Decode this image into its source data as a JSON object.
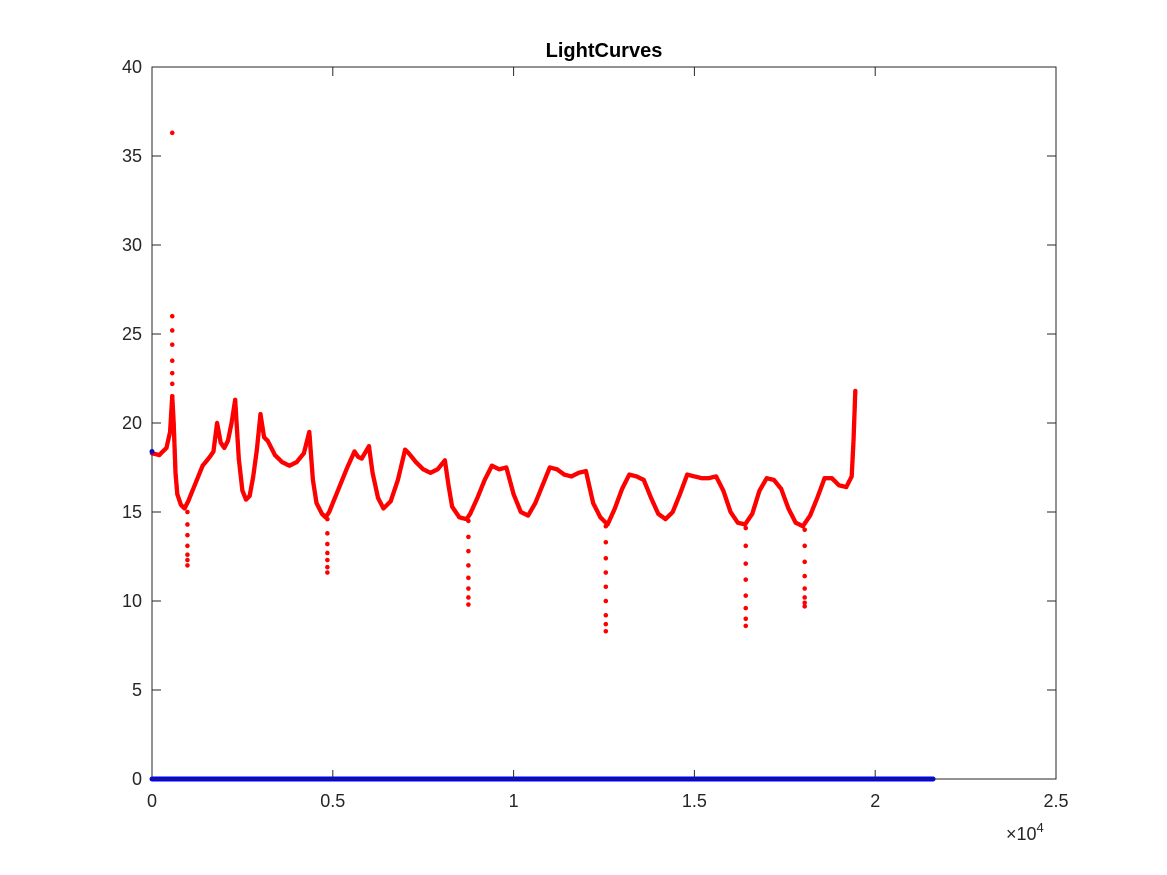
{
  "chart_data": {
    "type": "scatter",
    "title": "LightCurves",
    "xlabel": "",
    "ylabel": "",
    "xlim": [
      0,
      25000
    ],
    "ylim": [
      0,
      40
    ],
    "x_exponent_label": "×10",
    "x_exponent_power": "4",
    "x_ticks": [
      0,
      5000,
      10000,
      15000,
      20000,
      25000
    ],
    "x_tick_labels": [
      "0",
      "0.5",
      "1",
      "1.5",
      "2",
      "2.5"
    ],
    "y_ticks": [
      0,
      5,
      10,
      15,
      20,
      25,
      30,
      35,
      40
    ],
    "y_tick_labels": [
      "0",
      "5",
      "10",
      "15",
      "20",
      "25",
      "30",
      "35",
      "40"
    ],
    "grid": false,
    "colors": {
      "series_red": "#ff0000",
      "series_blue": "#0000ff",
      "axes": "#262626"
    },
    "series": [
      {
        "color": "#ff0000",
        "x": [
          0,
          200,
          400,
          500,
          560,
          600,
          650,
          700,
          800,
          900,
          1000,
          1200,
          1400,
          1600,
          1700,
          1800,
          1900,
          2000,
          2100,
          2200,
          2300,
          2400,
          2500,
          2600,
          2700,
          2800,
          2900,
          3000,
          3100,
          3200,
          3400,
          3600,
          3800,
          4000,
          4200,
          4350,
          4450,
          4550,
          4700,
          4800,
          4900,
          5000,
          5200,
          5400,
          5600,
          5700,
          5800,
          6000,
          6100,
          6250,
          6400,
          6600,
          6800,
          7000,
          7100,
          7300,
          7500,
          7700,
          7900,
          8100,
          8200,
          8300,
          8500,
          8700,
          8800,
          9000,
          9200,
          9400,
          9600,
          9800,
          10000,
          10200,
          10400,
          10600,
          10800,
          11000,
          11200,
          11400,
          11600,
          11800,
          12000,
          12200,
          12400,
          12600,
          12800,
          13000,
          13200,
          13400,
          13600,
          13800,
          14000,
          14200,
          14400,
          14600,
          14800,
          15000,
          15200,
          15400,
          15600,
          15800,
          16000,
          16200,
          16400,
          16600,
          16800,
          17000,
          17200,
          17400,
          17600,
          17800,
          18000,
          18200,
          18400,
          18600,
          18800,
          19000,
          19200,
          19350,
          19400,
          19450
        ],
        "y": [
          18.3,
          18.2,
          18.6,
          19.5,
          21.5,
          20.0,
          17.2,
          16.0,
          15.4,
          15.2,
          15.6,
          16.6,
          17.6,
          18.1,
          18.4,
          20.0,
          18.9,
          18.6,
          19.0,
          20.0,
          21.3,
          18.0,
          16.2,
          15.7,
          15.9,
          17.0,
          18.5,
          20.5,
          19.2,
          19.0,
          18.2,
          17.8,
          17.6,
          17.8,
          18.3,
          19.5,
          16.8,
          15.5,
          14.9,
          14.7,
          15.0,
          15.5,
          16.5,
          17.5,
          18.4,
          18.1,
          18.0,
          18.7,
          17.2,
          15.8,
          15.2,
          15.6,
          16.8,
          18.5,
          18.3,
          17.8,
          17.4,
          17.2,
          17.4,
          17.9,
          16.5,
          15.3,
          14.7,
          14.6,
          14.9,
          15.8,
          16.8,
          17.6,
          17.4,
          17.5,
          16.0,
          15.0,
          14.8,
          15.5,
          16.5,
          17.5,
          17.4,
          17.1,
          17.0,
          17.2,
          17.3,
          15.5,
          14.7,
          14.3,
          15.2,
          16.3,
          17.1,
          17.0,
          16.8,
          15.8,
          14.9,
          14.6,
          15.0,
          16.0,
          17.1,
          17.0,
          16.9,
          16.9,
          17.0,
          16.2,
          15.0,
          14.4,
          14.3,
          14.9,
          16.2,
          16.9,
          16.8,
          16.3,
          15.2,
          14.4,
          14.2,
          14.8,
          15.8,
          16.9,
          16.9,
          16.5,
          16.4,
          17.0,
          19.0,
          21.8
        ]
      },
      {
        "color": "#ff0000",
        "x": [
          560,
          560,
          560,
          560,
          560,
          560,
          560,
          560,
          980,
          980,
          980,
          980,
          980,
          980,
          980,
          4850,
          4850,
          4850,
          4850,
          4850,
          4850,
          4850,
          8750,
          8750,
          8750,
          8750,
          8750,
          8750,
          8750,
          8750,
          12550,
          12550,
          12550,
          12550,
          12550,
          12550,
          12550,
          12550,
          12550,
          16420,
          16420,
          16420,
          16420,
          16420,
          16420,
          16420,
          16420,
          18050,
          18050,
          18050,
          18050,
          18050,
          18050,
          18050,
          18050
        ],
        "y": [
          36.3,
          26.0,
          25.2,
          24.4,
          23.5,
          22.8,
          22.2,
          21.5,
          15.0,
          14.3,
          13.7,
          13.1,
          12.6,
          12.3,
          12.0,
          14.6,
          13.8,
          13.2,
          12.7,
          12.3,
          11.9,
          11.6,
          14.5,
          13.6,
          12.8,
          12.0,
          11.3,
          10.7,
          10.2,
          9.8,
          14.2,
          13.3,
          12.4,
          11.6,
          10.8,
          10.0,
          9.2,
          8.7,
          8.3,
          14.1,
          13.1,
          12.1,
          11.2,
          10.3,
          9.6,
          9.0,
          8.6,
          14.0,
          13.1,
          12.2,
          11.4,
          10.7,
          10.2,
          9.9,
          9.7
        ]
      },
      {
        "color": "#0000ff",
        "x": [
          0,
          21600
        ],
        "y": [
          0,
          0
        ]
      },
      {
        "color": "#0000ff",
        "x": [
          0
        ],
        "y": [
          18.4
        ]
      }
    ]
  }
}
